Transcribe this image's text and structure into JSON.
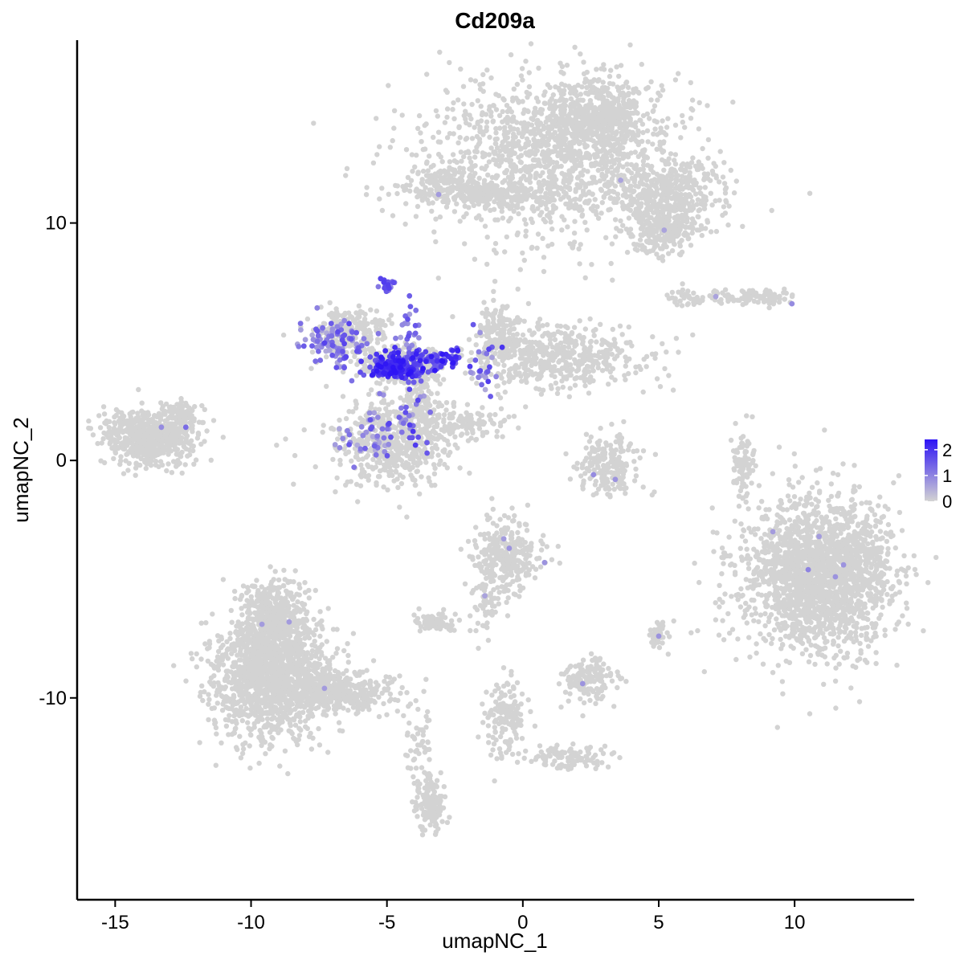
{
  "chart_data": {
    "type": "scatter",
    "title": "Cd209a",
    "xlabel": "umapNC_1",
    "ylabel": "umapNC_2",
    "xlim": [
      -16.4,
      14.4
    ],
    "ylim": [
      -18.5,
      17.7
    ],
    "x_ticks": [
      -15,
      -10,
      -5,
      0,
      5,
      10
    ],
    "y_ticks": [
      -10,
      0,
      10
    ],
    "grid": false,
    "legend": {
      "placement": "right",
      "ticks": [
        0,
        1,
        2
      ],
      "range": [
        0,
        2.4
      ],
      "low_color": "#d3d3d3",
      "high_color": "#2d13f5"
    },
    "clusters": [
      {
        "cx": 0.9,
        "cy": 12.6,
        "sx": 2.8,
        "sy": 1.9,
        "n": 1300
      },
      {
        "cx": 2.6,
        "cy": 14.5,
        "sx": 1.3,
        "sy": 0.9,
        "n": 500
      },
      {
        "cx": 5.4,
        "cy": 11.1,
        "sx": 1.2,
        "sy": 0.9,
        "n": 400
      },
      {
        "cx": 5.1,
        "cy": 9.6,
        "sx": 0.7,
        "sy": 0.5,
        "n": 180
      },
      {
        "cx": -1.3,
        "cy": 11.2,
        "sx": 1.5,
        "sy": 0.3,
        "n": 200
      },
      {
        "cx": -2.9,
        "cy": 11.8,
        "sx": 0.6,
        "sy": 0.4,
        "n": 90
      },
      {
        "cx": 8.9,
        "cy": 6.9,
        "sx": 0.7,
        "sy": 0.2,
        "n": 80
      },
      {
        "cx": 6.6,
        "cy": 6.9,
        "sx": 0.8,
        "sy": 0.2,
        "n": 60
      },
      {
        "cx": 1.2,
        "cy": 4.3,
        "sx": 1.9,
        "sy": 0.8,
        "n": 500
      },
      {
        "cx": -0.9,
        "cy": 5.4,
        "sx": 0.5,
        "sy": 0.7,
        "n": 150
      },
      {
        "cx": -6.4,
        "cy": 5.3,
        "sx": 0.8,
        "sy": 0.6,
        "n": 250
      },
      {
        "cx": -4.5,
        "cy": 4.0,
        "sx": 0.8,
        "sy": 0.4,
        "n": 400
      },
      {
        "cx": -4.7,
        "cy": 0.8,
        "sx": 1.3,
        "sy": 1.1,
        "n": 550
      },
      {
        "cx": -3.8,
        "cy": 2.6,
        "sx": 0.3,
        "sy": 0.8,
        "n": 90
      },
      {
        "cx": -2.0,
        "cy": 1.5,
        "sx": 0.9,
        "sy": 0.4,
        "n": 100
      },
      {
        "cx": -13.7,
        "cy": 1.0,
        "sx": 1.0,
        "sy": 0.7,
        "n": 650
      },
      {
        "cx": -12.6,
        "cy": 2.0,
        "sx": 0.3,
        "sy": 0.4,
        "n": 60
      },
      {
        "cx": 3.1,
        "cy": -0.2,
        "sx": 0.7,
        "sy": 0.8,
        "n": 200
      },
      {
        "cx": 8.1,
        "cy": -0.3,
        "sx": 0.2,
        "sy": 0.9,
        "n": 90
      },
      {
        "cx": 10.9,
        "cy": -4.8,
        "sx": 1.6,
        "sy": 1.9,
        "n": 2000
      },
      {
        "cx": -0.6,
        "cy": -4.0,
        "sx": 0.7,
        "sy": 0.9,
        "n": 300
      },
      {
        "cx": -1.3,
        "cy": -6.2,
        "sx": 0.3,
        "sy": 0.6,
        "n": 50
      },
      {
        "cx": -3.2,
        "cy": -6.8,
        "sx": 0.5,
        "sy": 0.2,
        "n": 80
      },
      {
        "cx": 5.0,
        "cy": -7.3,
        "sx": 0.2,
        "sy": 0.3,
        "n": 40
      },
      {
        "cx": 2.4,
        "cy": -9.2,
        "sx": 0.6,
        "sy": 0.5,
        "n": 150
      },
      {
        "cx": -0.6,
        "cy": -10.8,
        "sx": 0.5,
        "sy": 1.0,
        "n": 150
      },
      {
        "cx": 1.8,
        "cy": -12.5,
        "sx": 1.0,
        "sy": 0.3,
        "n": 100
      },
      {
        "cx": -9.3,
        "cy": -9.0,
        "sx": 1.3,
        "sy": 1.5,
        "n": 1400
      },
      {
        "cx": -9.1,
        "cy": -6.5,
        "sx": 0.7,
        "sy": 1.0,
        "n": 400
      },
      {
        "cx": -6.8,
        "cy": -9.8,
        "sx": 1.2,
        "sy": 0.5,
        "n": 400
      },
      {
        "cx": -3.4,
        "cy": -14.5,
        "sx": 0.3,
        "sy": 0.6,
        "n": 150
      },
      {
        "cx": -3.8,
        "cy": -12.2,
        "sx": 0.3,
        "sy": 0.9,
        "n": 50
      }
    ],
    "expressed": [
      {
        "cx": -4.6,
        "cy": 3.9,
        "sx": 0.6,
        "sy": 0.35,
        "n": 180,
        "vmin": 1.4,
        "vmax": 2.4
      },
      {
        "cx": -3.2,
        "cy": 4.2,
        "sx": 0.9,
        "sy": 0.35,
        "n": 70,
        "vmin": 1.0,
        "vmax": 2.4
      },
      {
        "cx": -6.9,
        "cy": 5.0,
        "sx": 0.7,
        "sy": 0.6,
        "n": 90,
        "vmin": 0.5,
        "vmax": 1.8
      },
      {
        "cx": -4.9,
        "cy": 7.4,
        "sx": 0.2,
        "sy": 0.15,
        "n": 20,
        "vmin": 0.8,
        "vmax": 2.0
      },
      {
        "cx": -4.1,
        "cy": 5.6,
        "sx": 0.3,
        "sy": 0.9,
        "n": 25,
        "vmin": 0.6,
        "vmax": 1.8
      },
      {
        "cx": -5.6,
        "cy": 0.9,
        "sx": 0.7,
        "sy": 0.7,
        "n": 45,
        "vmin": 0.4,
        "vmax": 1.6
      },
      {
        "cx": -4.2,
        "cy": 1.7,
        "sx": 0.6,
        "sy": 0.7,
        "n": 30,
        "vmin": 0.5,
        "vmax": 2.0
      },
      {
        "cx": -1.4,
        "cy": 4.2,
        "sx": 0.4,
        "sy": 0.8,
        "n": 25,
        "vmin": 0.5,
        "vmax": 2.0
      }
    ],
    "isolated_points": [
      {
        "x": -13.3,
        "y": 1.4,
        "v": 0.9
      },
      {
        "x": -12.4,
        "y": 1.4,
        "v": 1.3
      },
      {
        "x": 10.5,
        "y": -4.6,
        "v": 1.0
      },
      {
        "x": 11.8,
        "y": -4.4,
        "v": 0.8
      },
      {
        "x": 10.9,
        "y": -3.2,
        "v": 0.7
      },
      {
        "x": 9.2,
        "y": -3.0,
        "v": 0.7
      },
      {
        "x": 11.5,
        "y": -4.9,
        "v": 0.8
      },
      {
        "x": -0.5,
        "y": -3.7,
        "v": 0.8
      },
      {
        "x": -0.7,
        "y": -3.3,
        "v": 0.7
      },
      {
        "x": 0.8,
        "y": -4.3,
        "v": 0.8
      },
      {
        "x": 2.6,
        "y": -0.6,
        "v": 0.9
      },
      {
        "x": 3.4,
        "y": -0.8,
        "v": 0.8
      },
      {
        "x": -8.6,
        "y": -6.8,
        "v": 0.7
      },
      {
        "x": -9.6,
        "y": -6.9,
        "v": 0.7
      },
      {
        "x": 9.9,
        "y": 6.6,
        "v": 0.9
      },
      {
        "x": 7.1,
        "y": 6.9,
        "v": 0.6
      },
      {
        "x": 5.0,
        "y": -7.4,
        "v": 0.8
      },
      {
        "x": 2.2,
        "y": -9.4,
        "v": 0.8
      },
      {
        "x": 3.6,
        "y": 11.8,
        "v": 0.6
      },
      {
        "x": 5.2,
        "y": 9.7,
        "v": 0.6
      },
      {
        "x": -3.1,
        "y": 11.2,
        "v": 0.7
      },
      {
        "x": -1.4,
        "y": -5.7,
        "v": 0.6
      },
      {
        "x": -7.3,
        "y": -9.6,
        "v": 0.7
      }
    ]
  }
}
